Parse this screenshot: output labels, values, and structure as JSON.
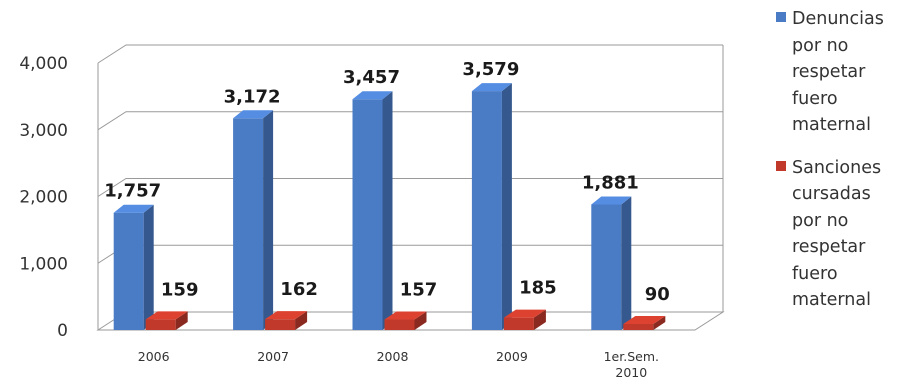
{
  "chart_data": {
    "type": "bar",
    "categories": [
      "2006",
      "2007",
      "2008",
      "2009",
      "1er.Sem. 2010"
    ],
    "series": [
      {
        "name": "Denuncias por no respetar fuero maternal",
        "values": [
          1757,
          3172,
          3457,
          3579,
          1881
        ],
        "labels": [
          "1,757",
          "3,172",
          "3,457",
          "3,579",
          "1,881"
        ],
        "color": "#4a7bc5"
      },
      {
        "name": "Sanciones cursadas por no respetar fuero maternal",
        "values": [
          159,
          162,
          157,
          185,
          90
        ],
        "labels": [
          "159",
          "162",
          "157",
          "185",
          "90"
        ],
        "color": "#c0392b"
      }
    ],
    "y_ticks": [
      "0",
      "1,000",
      "2,000",
      "3,000",
      "4,000"
    ],
    "ylim": [
      0,
      4000
    ],
    "grid": true,
    "legend_position": "right",
    "title": "",
    "xlabel": "",
    "ylabel": ""
  }
}
